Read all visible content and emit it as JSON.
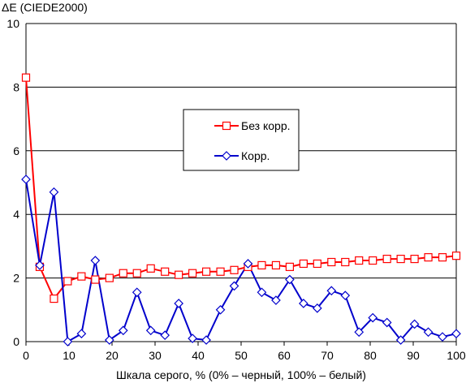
{
  "chart_data": {
    "type": "line",
    "ylabel": "ΔE (CIEDE2000)",
    "xlabel": "Шкала серого, % (0% – черный, 100% – белый)",
    "xlim": [
      0,
      100
    ],
    "ylim": [
      0,
      10
    ],
    "x_ticks": [
      0,
      10,
      20,
      30,
      40,
      50,
      60,
      70,
      80,
      90,
      100
    ],
    "y_ticks": [
      0,
      2,
      4,
      6,
      8,
      10
    ],
    "grid": "horizontal",
    "legend_position": "center-right",
    "x": [
      0,
      3.2,
      6.5,
      9.7,
      12.9,
      16.1,
      19.4,
      22.6,
      25.8,
      29.0,
      32.3,
      35.5,
      38.7,
      41.9,
      45.2,
      48.4,
      51.6,
      54.8,
      58.1,
      61.3,
      64.5,
      67.7,
      71.0,
      74.2,
      77.4,
      80.6,
      83.9,
      87.1,
      90.3,
      93.5,
      96.8,
      100
    ],
    "series": [
      {
        "name": "Без корр.",
        "color": "#ff0000",
        "marker": "square",
        "values": [
          8.3,
          2.35,
          1.35,
          1.9,
          2.05,
          1.95,
          2.0,
          2.15,
          2.15,
          2.3,
          2.2,
          2.1,
          2.15,
          2.2,
          2.2,
          2.25,
          2.35,
          2.4,
          2.4,
          2.35,
          2.45,
          2.45,
          2.5,
          2.5,
          2.55,
          2.55,
          2.6,
          2.6,
          2.6,
          2.65,
          2.65,
          2.7
        ]
      },
      {
        "name": "Корр.",
        "color": "#0000cc",
        "marker": "diamond",
        "values": [
          5.1,
          2.4,
          4.7,
          0.0,
          0.25,
          2.55,
          0.05,
          0.35,
          1.55,
          0.35,
          0.2,
          1.2,
          0.1,
          0.05,
          1.0,
          1.75,
          2.45,
          1.55,
          1.3,
          1.95,
          1.2,
          1.05,
          1.6,
          1.45,
          0.3,
          0.75,
          0.6,
          0.05,
          0.55,
          0.3,
          0.15,
          0.25
        ]
      }
    ]
  }
}
